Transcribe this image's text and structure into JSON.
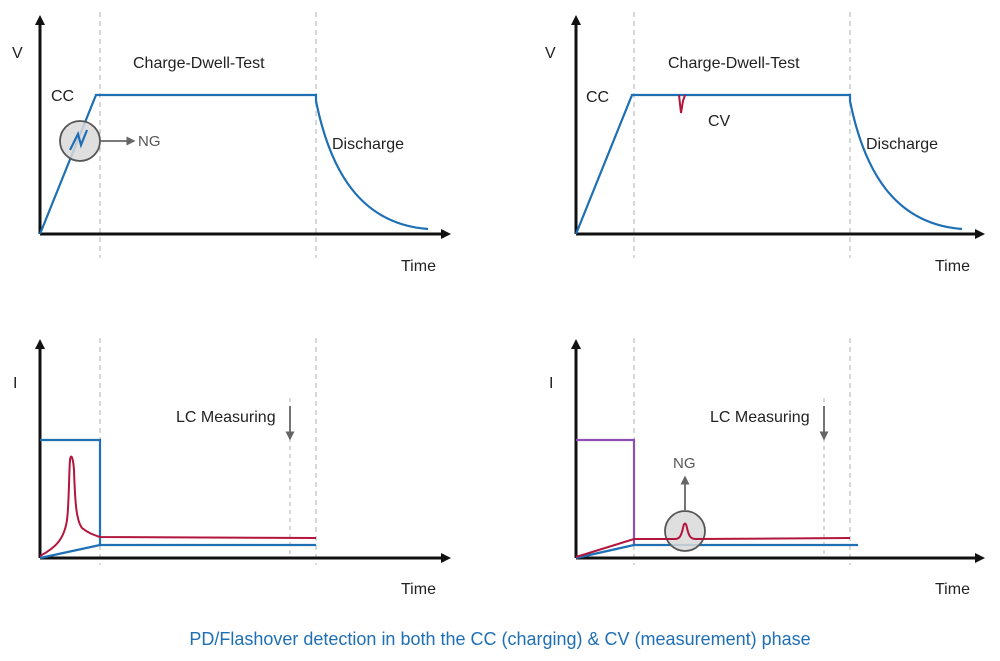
{
  "colors": {
    "voltage_line": "#1f6fb5",
    "current_line": "#b3163c",
    "cv_current_line": "#8a4fb3",
    "caption": "#1f6fb5"
  },
  "panels": {
    "top_left": {
      "y_axis": "V",
      "x_axis": "Time",
      "phase_label": "Charge-Dwell-Test",
      "cc_label": "CC",
      "ng_label": "NG",
      "discharge_label": "Discharge"
    },
    "top_right": {
      "y_axis": "V",
      "x_axis": "Time",
      "phase_label": "Charge-Dwell-Test",
      "cc_label": "CC",
      "cv_label": "CV",
      "discharge_label": "Discharge"
    },
    "bottom_left": {
      "y_axis": "I",
      "x_axis": "Time",
      "lc_label": "LC Measuring"
    },
    "bottom_right": {
      "y_axis": "I",
      "x_axis": "Time",
      "lc_label": "LC Measuring",
      "ng_label": "NG"
    }
  },
  "caption": "PD/Flashover detection in both the CC (charging) & CV (measurement) phase"
}
